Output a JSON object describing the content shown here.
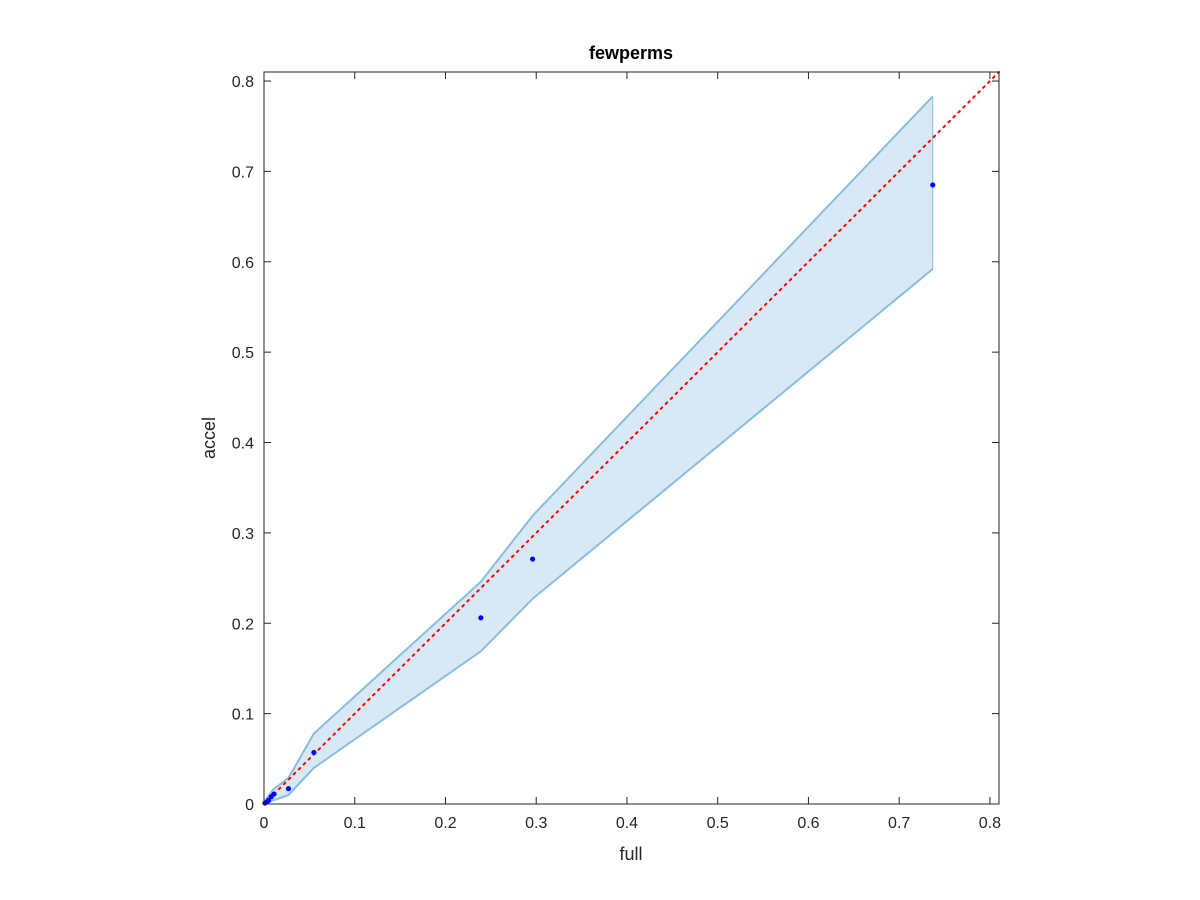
{
  "chart_data": {
    "type": "scatter",
    "title": "fewperms",
    "xlabel": "full",
    "ylabel": "accel",
    "xlim": [
      0,
      0.81
    ],
    "ylim": [
      0,
      0.81
    ],
    "xticks": [
      0,
      0.1,
      0.2,
      0.3,
      0.4,
      0.5,
      0.6,
      0.7,
      0.8
    ],
    "yticks": [
      0,
      0.1,
      0.2,
      0.3,
      0.4,
      0.5,
      0.6,
      0.7,
      0.8
    ],
    "xtick_labels": [
      "0",
      "0.1",
      "0.2",
      "0.3",
      "0.4",
      "0.5",
      "0.6",
      "0.7",
      "0.8"
    ],
    "ytick_labels": [
      "0",
      "0.1",
      "0.2",
      "0.3",
      "0.4",
      "0.5",
      "0.6",
      "0.7",
      "0.8"
    ],
    "grid": false,
    "points": {
      "x": [
        0.001,
        0.003,
        0.005,
        0.008,
        0.011,
        0.027,
        0.055,
        0.239,
        0.296,
        0.737
      ],
      "y": [
        0.001,
        0.002,
        0.004,
        0.008,
        0.011,
        0.017,
        0.057,
        0.206,
        0.271,
        0.685
      ],
      "color": "#0000ff"
    },
    "band": {
      "x": [
        0,
        0.01,
        0.027,
        0.055,
        0.239,
        0.296,
        0.737
      ],
      "upper": [
        0.002,
        0.016,
        0.029,
        0.078,
        0.246,
        0.319,
        0.783
      ],
      "lower": [
        0,
        0.004,
        0.01,
        0.04,
        0.169,
        0.227,
        0.592
      ],
      "edge_color": "#88bde0",
      "fill_color": "#d8e8f5"
    },
    "reference_line": {
      "type": "identity",
      "style": "dotted",
      "color": "#ff0000"
    }
  }
}
